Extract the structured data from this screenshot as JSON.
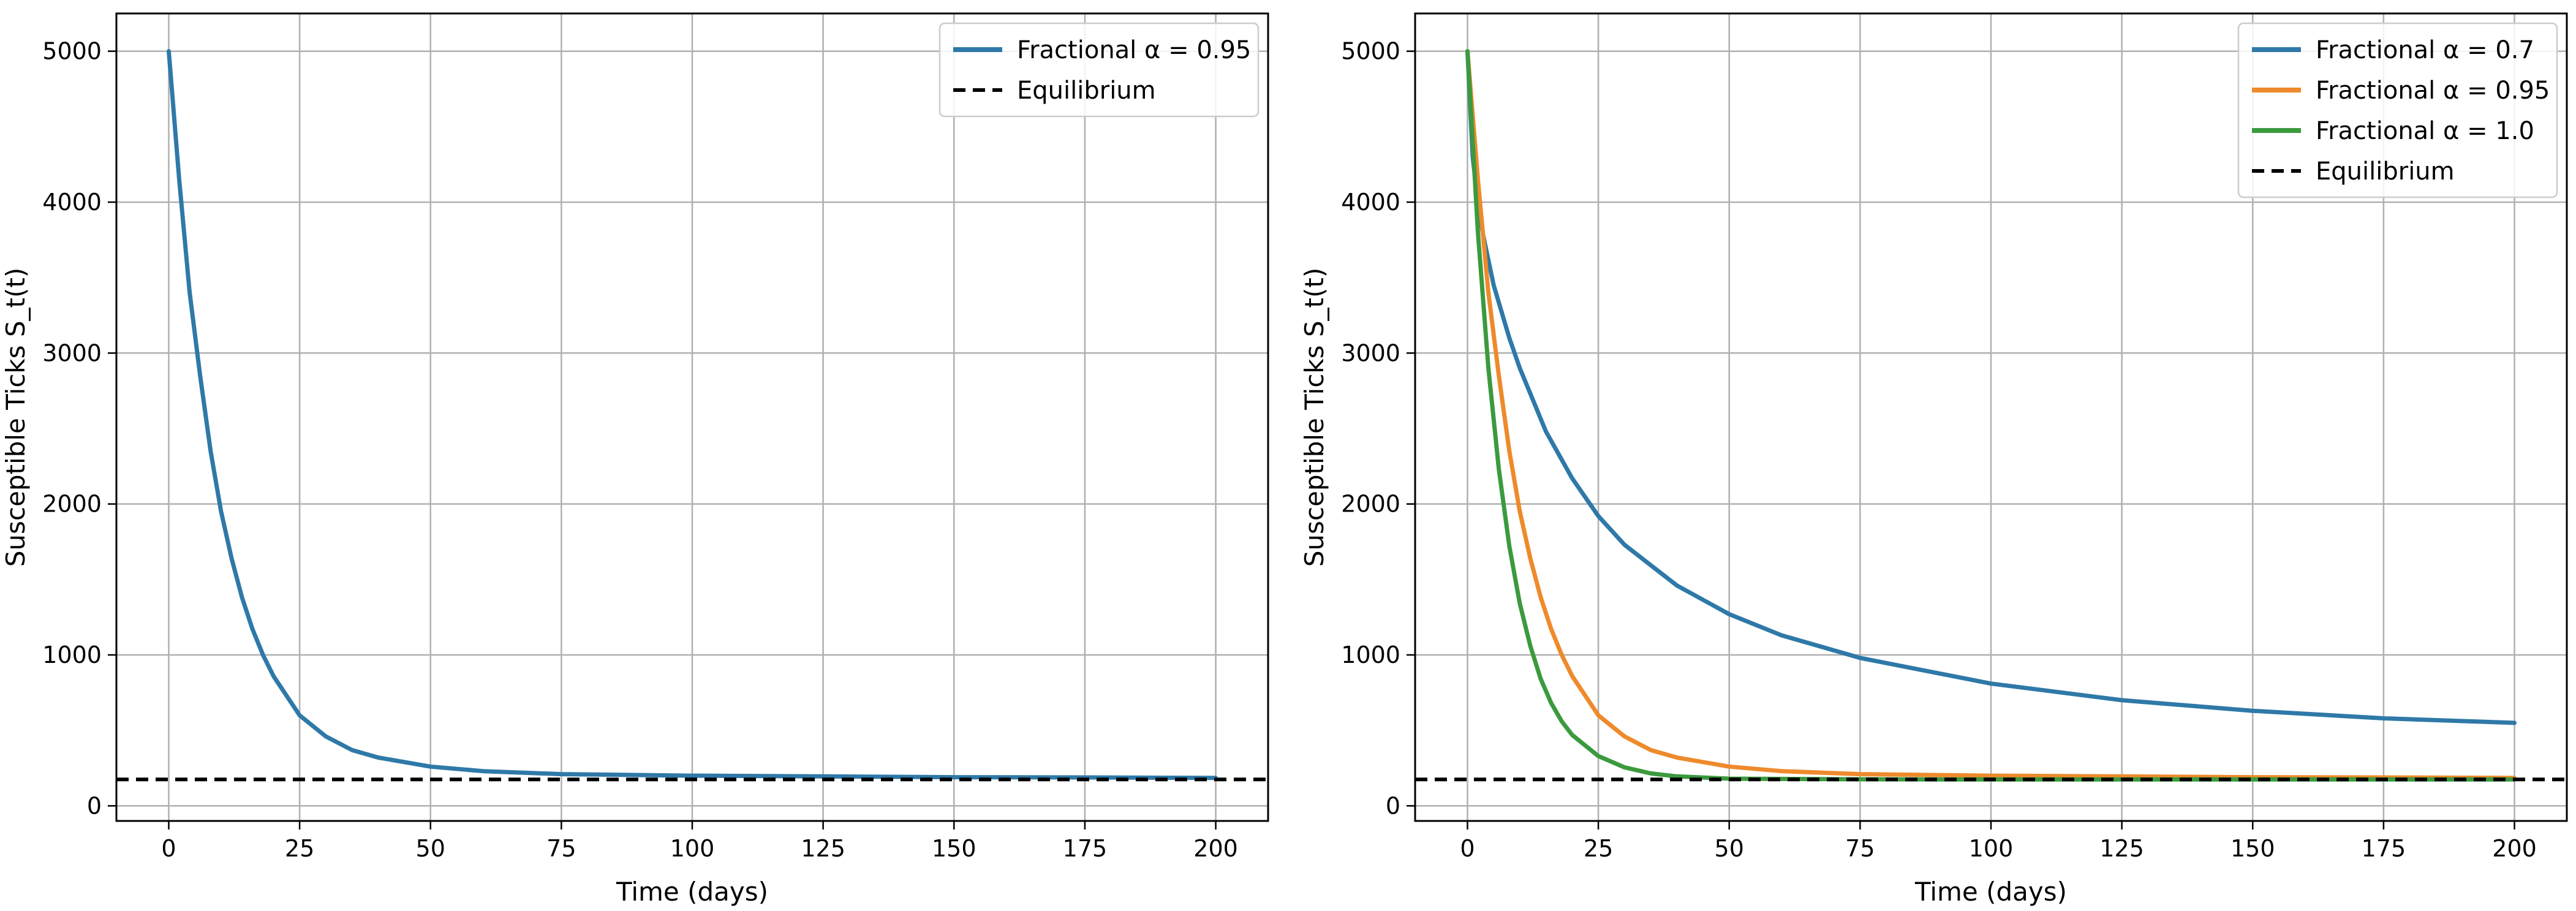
{
  "chart_data": [
    {
      "type": "line",
      "title": "",
      "xlabel": "Time (days)",
      "ylabel": "Susceptible Ticks S_t(t)",
      "xlim": [
        -10,
        210
      ],
      "ylim": [
        -100,
        5250
      ],
      "xticks": [
        0,
        25,
        50,
        75,
        100,
        125,
        150,
        175,
        200
      ],
      "yticks": [
        0,
        1000,
        2000,
        3000,
        4000,
        5000
      ],
      "grid": true,
      "legend_position": "top-right",
      "series": [
        {
          "name": "Fractional α = 0.95",
          "color": "#2e79a8",
          "style": "solid",
          "x": [
            0,
            2,
            4,
            6,
            8,
            10,
            12,
            14,
            16,
            18,
            20,
            25,
            30,
            35,
            40,
            50,
            60,
            75,
            100,
            125,
            150,
            175,
            200
          ],
          "y": [
            5000,
            4150,
            3400,
            2850,
            2350,
            1950,
            1640,
            1380,
            1170,
            1000,
            860,
            600,
            460,
            370,
            320,
            260,
            230,
            210,
            200,
            195,
            190,
            188,
            185
          ]
        },
        {
          "name": "Equilibrium",
          "color": "#000000",
          "style": "dashed",
          "x": [
            -10,
            210
          ],
          "y": [
            175,
            175
          ]
        }
      ]
    },
    {
      "type": "line",
      "title": "",
      "xlabel": "Time (days)",
      "ylabel": "Susceptible Ticks S_t(t)",
      "xlim": [
        -10,
        210
      ],
      "ylim": [
        -100,
        5250
      ],
      "xticks": [
        0,
        25,
        50,
        75,
        100,
        125,
        150,
        175,
        200
      ],
      "yticks": [
        0,
        1000,
        2000,
        3000,
        4000,
        5000
      ],
      "grid": true,
      "legend_position": "top-right",
      "series": [
        {
          "name": "Fractional α = 0.7",
          "color": "#2e79a8",
          "style": "solid",
          "x": [
            0,
            1,
            2,
            3,
            5,
            8,
            10,
            15,
            20,
            25,
            30,
            40,
            50,
            60,
            75,
            100,
            125,
            150,
            175,
            200
          ],
          "y": [
            5000,
            4300,
            4000,
            3780,
            3450,
            3100,
            2900,
            2480,
            2170,
            1920,
            1730,
            1460,
            1270,
            1130,
            980,
            810,
            700,
            630,
            580,
            550
          ]
        },
        {
          "name": "Fractional α = 0.95",
          "color": "#ee8a2b",
          "style": "solid",
          "x": [
            0,
            2,
            4,
            6,
            8,
            10,
            12,
            14,
            16,
            18,
            20,
            25,
            30,
            35,
            40,
            50,
            60,
            75,
            100,
            125,
            150,
            175,
            200
          ],
          "y": [
            5000,
            4150,
            3400,
            2850,
            2350,
            1950,
            1640,
            1380,
            1170,
            1000,
            860,
            600,
            460,
            370,
            320,
            260,
            230,
            210,
            200,
            195,
            190,
            188,
            185
          ]
        },
        {
          "name": "Fractional α = 1.0",
          "color": "#3b9a3e",
          "style": "solid",
          "x": [
            0,
            2,
            4,
            6,
            8,
            10,
            12,
            14,
            16,
            18,
            20,
            25,
            30,
            35,
            40,
            50,
            75,
            100,
            150,
            200
          ],
          "y": [
            5000,
            3800,
            2900,
            2230,
            1720,
            1340,
            1060,
            840,
            680,
            560,
            470,
            330,
            255,
            215,
            195,
            180,
            176,
            175,
            175,
            175
          ]
        },
        {
          "name": "Equilibrium",
          "color": "#000000",
          "style": "dashed",
          "x": [
            -10,
            210
          ],
          "y": [
            175,
            175
          ]
        }
      ]
    }
  ]
}
